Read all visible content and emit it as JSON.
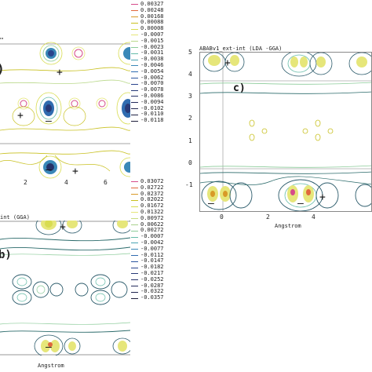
{
  "panel_a": {
    "axis_unit": "Angstrom",
    "x_ticks": [
      "2",
      "4",
      "6"
    ],
    "legend": [
      {
        "value": "0.00327",
        "color": "#d64b8a"
      },
      {
        "value": "0.00248",
        "color": "#e0683c"
      },
      {
        "value": "0.00168",
        "color": "#d89a28"
      },
      {
        "value": "0.00088",
        "color": "#c8c020"
      },
      {
        "value": "0.00008",
        "color": "#d8dc50"
      },
      {
        "value": "-0.0007",
        "color": "#e6e67a"
      },
      {
        "value": "-0.0015",
        "color": "#b9d88a"
      },
      {
        "value": "-0.0023",
        "color": "#8ccc9a"
      },
      {
        "value": "-0.0031",
        "color": "#64bca8"
      },
      {
        "value": "-0.0038",
        "color": "#4aa4b4"
      },
      {
        "value": "-0.0046",
        "color": "#3a88b8"
      },
      {
        "value": "-0.0054",
        "color": "#306cb0"
      },
      {
        "value": "-0.0062",
        "color": "#2c56a0"
      },
      {
        "value": "-0.0070",
        "color": "#2a448c"
      },
      {
        "value": "-0.0078",
        "color": "#283a78"
      },
      {
        "value": "-0.0086",
        "color": "#263268"
      },
      {
        "value": "-0.0094",
        "color": "#242b5c"
      },
      {
        "value": "-0.0102",
        "color": "#222650"
      },
      {
        "value": "-0.0110",
        "color": "#202244"
      },
      {
        "value": "-0.0118",
        "color": "#1e1e3a"
      }
    ]
  },
  "panel_b": {
    "title_partial": "int (GGA)",
    "label_partial": "b)",
    "axis_label": "Angstrom",
    "legend": [
      {
        "value": "0.03072",
        "color": "#d64b8a"
      },
      {
        "value": "0.02722",
        "color": "#e0683c"
      },
      {
        "value": "0.02372",
        "color": "#d89a28"
      },
      {
        "value": "0.02022",
        "color": "#c8c020"
      },
      {
        "value": "0.01672",
        "color": "#d8dc50"
      },
      {
        "value": "0.01322",
        "color": "#e6e67a"
      },
      {
        "value": "0.00972",
        "color": "#c8dc80"
      },
      {
        "value": "0.00622",
        "color": "#a8d28e"
      },
      {
        "value": "0.00272",
        "color": "#8ccc9a"
      },
      {
        "value": "-0.0007",
        "color": "#64bca8"
      },
      {
        "value": "-0.0042",
        "color": "#4aa4b4"
      },
      {
        "value": "-0.0077",
        "color": "#3a88b8"
      },
      {
        "value": "-0.0112",
        "color": "#306cb0"
      },
      {
        "value": "-0.0147",
        "color": "#2c56a0"
      },
      {
        "value": "-0.0182",
        "color": "#2a448c"
      },
      {
        "value": "-0.0217",
        "color": "#283a78"
      },
      {
        "value": "-0.0252",
        "color": "#263268"
      },
      {
        "value": "-0.0287",
        "color": "#242b5c"
      },
      {
        "value": "-0.0322",
        "color": "#222650"
      },
      {
        "value": "-0.0357",
        "color": "#1e1e3a"
      }
    ]
  },
  "panel_c": {
    "title": "ABABv1_ext-int (LDA -GGA)",
    "label": "c)",
    "axis_label": "Angstrom",
    "y_ticks": [
      "5",
      "4",
      "3",
      "2",
      "1",
      "0",
      "-1"
    ],
    "x_ticks": [
      "0",
      "2",
      "4"
    ]
  },
  "markers": {
    "plus": "+",
    "minus": "–"
  }
}
